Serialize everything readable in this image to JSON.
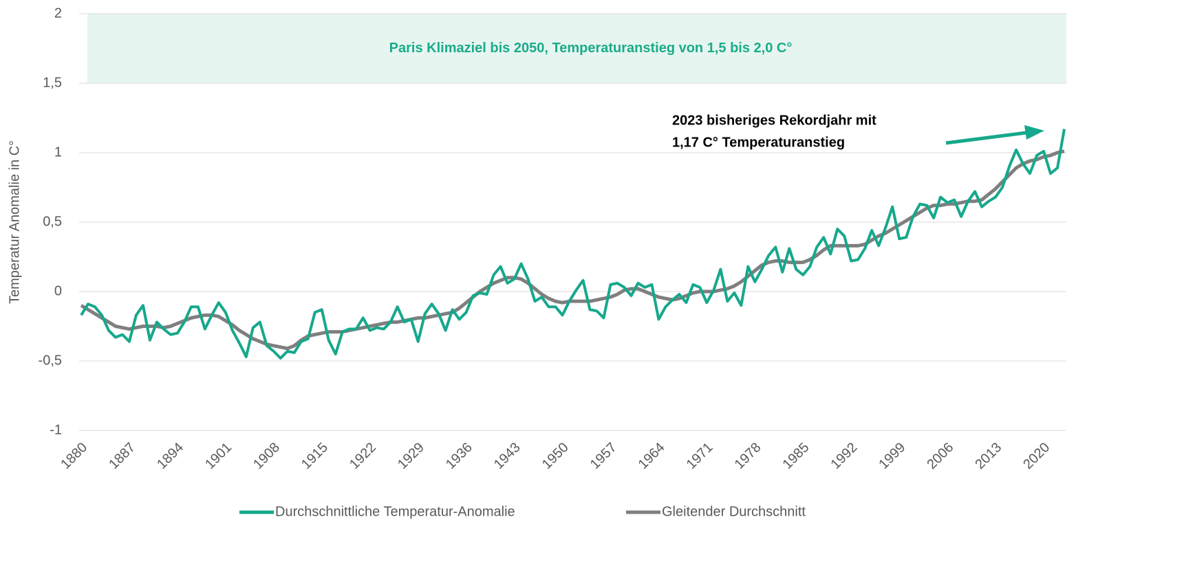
{
  "chart_data": {
    "type": "line",
    "y_axis_label": "Temperatur Anomalie in C°",
    "band": {
      "from": 1.5,
      "to": 2,
      "label": "Paris Klimaziel bis 2050, Temperaturanstieg von 1,5 bis 2,0 C°",
      "color": "#e6f5f0",
      "text_color": "#1aab8a"
    },
    "annotation": {
      "lines": [
        "2023 bisheriges Rekordjahr mit",
        "1,17 C° Temperaturanstieg"
      ],
      "arrow_color": "#16a88c"
    },
    "x": [
      1880,
      1881,
      1882,
      1883,
      1884,
      1885,
      1886,
      1887,
      1888,
      1889,
      1890,
      1891,
      1892,
      1893,
      1894,
      1895,
      1896,
      1897,
      1898,
      1899,
      1900,
      1901,
      1902,
      1903,
      1904,
      1905,
      1906,
      1907,
      1908,
      1909,
      1910,
      1911,
      1912,
      1913,
      1914,
      1915,
      1916,
      1917,
      1918,
      1919,
      1920,
      1921,
      1922,
      1923,
      1924,
      1925,
      1926,
      1927,
      1928,
      1929,
      1930,
      1931,
      1932,
      1933,
      1934,
      1935,
      1936,
      1937,
      1938,
      1939,
      1940,
      1941,
      1942,
      1943,
      1944,
      1945,
      1946,
      1947,
      1948,
      1949,
      1950,
      1951,
      1952,
      1953,
      1954,
      1955,
      1956,
      1957,
      1958,
      1959,
      1960,
      1961,
      1962,
      1963,
      1964,
      1965,
      1966,
      1967,
      1968,
      1969,
      1970,
      1971,
      1972,
      1973,
      1974,
      1975,
      1976,
      1977,
      1978,
      1979,
      1980,
      1981,
      1982,
      1983,
      1984,
      1985,
      1986,
      1987,
      1988,
      1989,
      1990,
      1991,
      1992,
      1993,
      1994,
      1995,
      1996,
      1997,
      1998,
      1999,
      2000,
      2001,
      2002,
      2003,
      2004,
      2005,
      2006,
      2007,
      2008,
      2009,
      2010,
      2011,
      2012,
      2013,
      2014,
      2015,
      2016,
      2017,
      2018,
      2019,
      2020,
      2021,
      2022,
      2023
    ],
    "xlim": [
      1880,
      2023
    ],
    "xticks": [
      1880,
      1887,
      1894,
      1901,
      1908,
      1915,
      1922,
      1929,
      1936,
      1943,
      1950,
      1957,
      1964,
      1971,
      1978,
      1985,
      1992,
      1999,
      2006,
      2013,
      2020
    ],
    "ylim": [
      -1,
      2
    ],
    "yticks": [
      -1,
      {
        "value": -0.5,
        "label": "-0,5"
      },
      0,
      {
        "value": 0.5,
        "label": "0,5"
      },
      1,
      {
        "value": 1.5,
        "label": "1,5"
      },
      2
    ],
    "grid": true,
    "series": [
      {
        "name": "Durchschnittliche Temperatur-Anomalie",
        "color": "#16a88c",
        "values": [
          -0.17,
          -0.09,
          -0.11,
          -0.17,
          -0.28,
          -0.33,
          -0.31,
          -0.36,
          -0.17,
          -0.1,
          -0.35,
          -0.22,
          -0.27,
          -0.31,
          -0.3,
          -0.22,
          -0.11,
          -0.11,
          -0.27,
          -0.17,
          -0.08,
          -0.15,
          -0.28,
          -0.37,
          -0.47,
          -0.26,
          -0.22,
          -0.39,
          -0.43,
          -0.48,
          -0.43,
          -0.44,
          -0.36,
          -0.34,
          -0.15,
          -0.13,
          -0.35,
          -0.45,
          -0.29,
          -0.27,
          -0.27,
          -0.19,
          -0.28,
          -0.26,
          -0.27,
          -0.22,
          -0.11,
          -0.22,
          -0.2,
          -0.36,
          -0.16,
          -0.09,
          -0.16,
          -0.28,
          -0.13,
          -0.2,
          -0.15,
          -0.03,
          -0.01,
          -0.02,
          0.12,
          0.18,
          0.06,
          0.09,
          0.2,
          0.09,
          -0.07,
          -0.04,
          -0.11,
          -0.11,
          -0.17,
          -0.07,
          0.01,
          0.08,
          -0.13,
          -0.14,
          -0.19,
          0.05,
          0.06,
          0.03,
          -0.03,
          0.06,
          0.03,
          0.05,
          -0.2,
          -0.11,
          -0.06,
          -0.02,
          -0.08,
          0.05,
          0.03,
          -0.08,
          0.01,
          0.16,
          -0.07,
          -0.01,
          -0.1,
          0.18,
          0.07,
          0.16,
          0.26,
          0.32,
          0.14,
          0.31,
          0.16,
          0.12,
          0.18,
          0.32,
          0.39,
          0.27,
          0.45,
          0.4,
          0.22,
          0.23,
          0.31,
          0.44,
          0.33,
          0.46,
          0.61,
          0.38,
          0.39,
          0.54,
          0.63,
          0.62,
          0.53,
          0.68,
          0.64,
          0.66,
          0.54,
          0.65,
          0.72,
          0.61,
          0.65,
          0.68,
          0.75,
          0.9,
          1.02,
          0.92,
          0.85,
          0.98,
          1.01,
          0.85,
          0.89,
          1.17
        ]
      },
      {
        "name": "Gleitender Durchschnitt",
        "color": "#7f7f7f",
        "values": [
          -0.1,
          -0.13,
          -0.16,
          -0.19,
          -0.22,
          -0.25,
          -0.26,
          -0.27,
          -0.26,
          -0.25,
          -0.25,
          -0.25,
          -0.26,
          -0.25,
          -0.23,
          -0.21,
          -0.19,
          -0.18,
          -0.17,
          -0.17,
          -0.18,
          -0.21,
          -0.24,
          -0.28,
          -0.31,
          -0.34,
          -0.36,
          -0.38,
          -0.39,
          -0.4,
          -0.41,
          -0.39,
          -0.35,
          -0.32,
          -0.31,
          -0.3,
          -0.29,
          -0.29,
          -0.29,
          -0.28,
          -0.27,
          -0.26,
          -0.25,
          -0.24,
          -0.23,
          -0.22,
          -0.22,
          -0.21,
          -0.2,
          -0.19,
          -0.19,
          -0.18,
          -0.17,
          -0.16,
          -0.15,
          -0.12,
          -0.08,
          -0.04,
          0.0,
          0.03,
          0.06,
          0.08,
          0.1,
          0.1,
          0.09,
          0.06,
          0.02,
          -0.02,
          -0.05,
          -0.07,
          -0.08,
          -0.07,
          -0.07,
          -0.07,
          -0.07,
          -0.06,
          -0.05,
          -0.04,
          -0.02,
          0.01,
          0.02,
          0.02,
          0.0,
          -0.02,
          -0.04,
          -0.05,
          -0.06,
          -0.05,
          -0.03,
          -0.01,
          0.0,
          0.0,
          0.0,
          0.01,
          0.02,
          0.04,
          0.07,
          0.11,
          0.15,
          0.19,
          0.21,
          0.22,
          0.22,
          0.21,
          0.21,
          0.21,
          0.23,
          0.26,
          0.3,
          0.33,
          0.33,
          0.33,
          0.33,
          0.33,
          0.34,
          0.37,
          0.4,
          0.42,
          0.45,
          0.48,
          0.51,
          0.54,
          0.57,
          0.6,
          0.62,
          0.62,
          0.63,
          0.63,
          0.64,
          0.65,
          0.65,
          0.66,
          0.7,
          0.74,
          0.79,
          0.84,
          0.89,
          0.92,
          0.94,
          0.95,
          0.97,
          0.98,
          1.0,
          1.01
        ]
      }
    ]
  }
}
